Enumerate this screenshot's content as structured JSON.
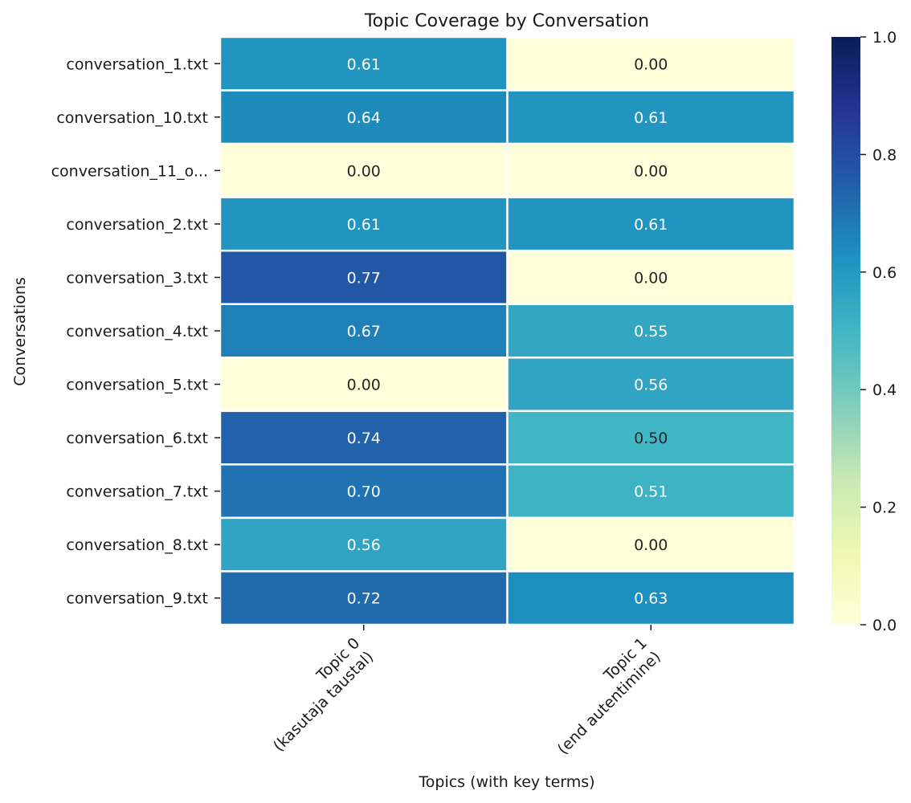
{
  "chart_data": {
    "type": "heatmap",
    "title": "Topic Coverage by Conversation",
    "xlabel": "Topics (with key terms)",
    "ylabel": "Conversations",
    "columns": [
      {
        "line1": "Topic 0",
        "line2": "(kasutaja taustal)"
      },
      {
        "line1": "Topic 1",
        "line2": "(end autentimine)"
      }
    ],
    "rows": [
      "conversation_1.txt",
      "conversation_10.txt",
      "conversation_11_o...",
      "conversation_2.txt",
      "conversation_3.txt",
      "conversation_4.txt",
      "conversation_5.txt",
      "conversation_6.txt",
      "conversation_7.txt",
      "conversation_8.txt",
      "conversation_9.txt"
    ],
    "values": [
      [
        0.61,
        0.0
      ],
      [
        0.64,
        0.61
      ],
      [
        0.0,
        0.0
      ],
      [
        0.61,
        0.61
      ],
      [
        0.77,
        0.0
      ],
      [
        0.67,
        0.55
      ],
      [
        0.0,
        0.56
      ],
      [
        0.74,
        0.5
      ],
      [
        0.7,
        0.51
      ],
      [
        0.56,
        0.0
      ],
      [
        0.72,
        0.63
      ]
    ],
    "value_format": "0.00",
    "colorscale": "YlGnBu",
    "vmin": 0.0,
    "vmax": 1.0,
    "colorbar_ticks": [
      "0.0",
      "0.2",
      "0.4",
      "0.6",
      "0.8",
      "1.0"
    ]
  }
}
